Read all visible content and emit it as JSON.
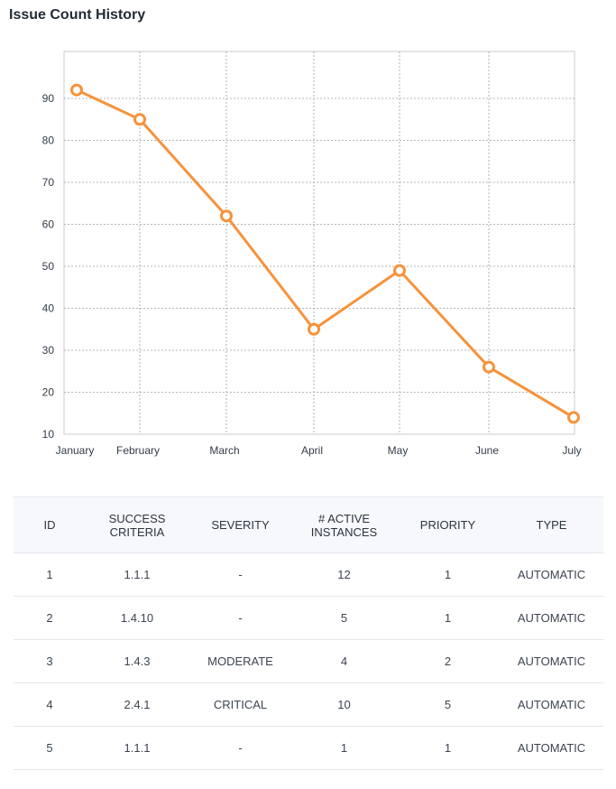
{
  "page": {
    "title": "Issue Count History"
  },
  "chart_data": {
    "type": "line",
    "title": "",
    "xlabel": "",
    "ylabel": "",
    "categories": [
      "January",
      "February",
      "March",
      "April",
      "May",
      "June",
      "July"
    ],
    "series": [
      {
        "values": [
          92,
          85,
          62,
          35,
          49,
          26,
          14
        ],
        "color": "#f7923a"
      }
    ],
    "ylim": [
      10,
      100
    ],
    "yticks": [
      10,
      20,
      30,
      40,
      50,
      60,
      70,
      80,
      90
    ],
    "grid": true,
    "legend": "none"
  },
  "table": {
    "headers": {
      "id": "ID",
      "success_criteria": "SUCCESS CRITERIA",
      "severity": "SEVERITY",
      "active_line1": "# ACTIVE",
      "active_line2": "INSTANCES",
      "priority": "PRIORITY",
      "type": "TYPE"
    },
    "rows": [
      {
        "id": "1",
        "success_criteria": "1.1.1",
        "severity": "-",
        "active_instances": "12",
        "priority": "1",
        "type": "AUTOMATIC"
      },
      {
        "id": "2",
        "success_criteria": "1.4.10",
        "severity": "-",
        "active_instances": "5",
        "priority": "1",
        "type": "AUTOMATIC"
      },
      {
        "id": "3",
        "success_criteria": "1.4.3",
        "severity": "MODERATE",
        "active_instances": "4",
        "priority": "2",
        "type": "AUTOMATIC"
      },
      {
        "id": "4",
        "success_criteria": "2.4.1",
        "severity": "CRITICAL",
        "active_instances": "10",
        "priority": "5",
        "type": "AUTOMATIC"
      },
      {
        "id": "5",
        "success_criteria": "1.1.1",
        "severity": "-",
        "active_instances": "1",
        "priority": "1",
        "type": "AUTOMATIC"
      }
    ]
  }
}
